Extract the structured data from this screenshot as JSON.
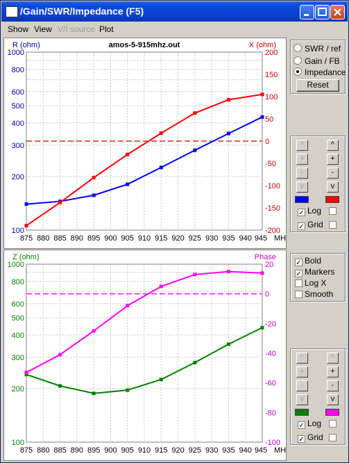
{
  "window": {
    "title": "/Gain/SWR/Impedance (F5)"
  },
  "menu": [
    {
      "label": "Show",
      "enabled": true
    },
    {
      "label": "View",
      "enabled": true
    },
    {
      "label": "V/I source",
      "enabled": false
    },
    {
      "label": "Plot",
      "enabled": true
    }
  ],
  "mode": {
    "options": [
      "SWR / ref",
      "Gain / FB",
      "Impedance"
    ],
    "selected": "Impedance",
    "reset_label": "Reset"
  },
  "top_controls": {
    "left_buttons": [
      "^",
      "+",
      "-",
      "v"
    ],
    "right_buttons": [
      "^",
      "+",
      "-",
      "v"
    ],
    "left_color": "#0000ff",
    "right_color": "#ff0000",
    "log_label": "Log",
    "grid_label": "Grid",
    "log_left": true,
    "log_right": false,
    "grid_left": true,
    "grid_right": false
  },
  "bottom_controls": {
    "left_buttons": [
      "^",
      "+",
      "-",
      "v"
    ],
    "right_buttons": [
      "^",
      "+",
      "-",
      "v"
    ],
    "left_color": "#008000",
    "right_color": "#ff00ff",
    "log_label": "Log",
    "grid_label": "Grid",
    "log_left": true,
    "log_right": false,
    "grid_left": true,
    "grid_right": false
  },
  "display_options": {
    "items": [
      {
        "label": "Bold",
        "checked": true
      },
      {
        "label": "Markers",
        "checked": true
      },
      {
        "label": "Log X",
        "checked": false
      },
      {
        "label": "Smooth",
        "checked": false
      }
    ]
  },
  "chart_data": [
    {
      "type": "line",
      "title": "amos-5-915mhz.out",
      "xlabel": "MHz",
      "x": [
        875,
        885,
        895,
        905,
        915,
        925,
        935,
        945
      ],
      "x_ticks": [
        875,
        880,
        885,
        890,
        895,
        900,
        905,
        910,
        915,
        920,
        925,
        930,
        935,
        940,
        945
      ],
      "ylabel_left": "R (ohm)",
      "ylabel_right": "X (ohm)",
      "y_left_scale": "log",
      "y_left_range": [
        100,
        1000
      ],
      "y_left_ticks": [
        100,
        200,
        300,
        400,
        500,
        600,
        800,
        1000
      ],
      "y_right_range": [
        -200,
        200
      ],
      "y_right_ticks": [
        -200,
        -150,
        -100,
        -50,
        0,
        50,
        100,
        150,
        200
      ],
      "grid": true,
      "series": [
        {
          "name": "R",
          "axis": "left",
          "color": "#0000ff",
          "values": [
            140,
            145,
            157,
            181,
            225,
            281,
            349,
            432
          ]
        },
        {
          "name": "X",
          "axis": "right",
          "color": "#ff0000",
          "values": [
            -190,
            -138,
            -82,
            -30,
            18,
            63,
            93,
            105
          ]
        }
      ],
      "reference_line": {
        "axis": "right",
        "value": 0,
        "color": "#cc0000"
      }
    },
    {
      "type": "line",
      "title": "",
      "xlabel": "MHz",
      "x": [
        875,
        885,
        895,
        905,
        915,
        925,
        935,
        945
      ],
      "x_ticks": [
        875,
        880,
        885,
        890,
        895,
        900,
        905,
        910,
        915,
        920,
        925,
        930,
        935,
        940,
        945
      ],
      "ylabel_left": "Z (ohm)",
      "ylabel_right": "Phase",
      "y_left_scale": "log",
      "y_left_range": [
        100,
        1000
      ],
      "y_left_ticks": [
        100,
        200,
        300,
        400,
        500,
        600,
        800,
        1000
      ],
      "y_right_range": [
        -100,
        20
      ],
      "y_right_ticks": [
        -100,
        -80,
        -60,
        -40,
        -20,
        0,
        20
      ],
      "grid": true,
      "series": [
        {
          "name": "Z",
          "axis": "left",
          "color": "#008000",
          "values": [
            240,
            207,
            188,
            196,
            225,
            280,
            355,
            440
          ]
        },
        {
          "name": "Phase",
          "axis": "right",
          "color": "#ff00ff",
          "values": [
            -53,
            -41,
            -25,
            -8,
            5,
            13,
            15,
            14
          ]
        }
      ],
      "reference_line": {
        "axis": "right",
        "value": 0,
        "color": "#ff00ff"
      }
    }
  ]
}
